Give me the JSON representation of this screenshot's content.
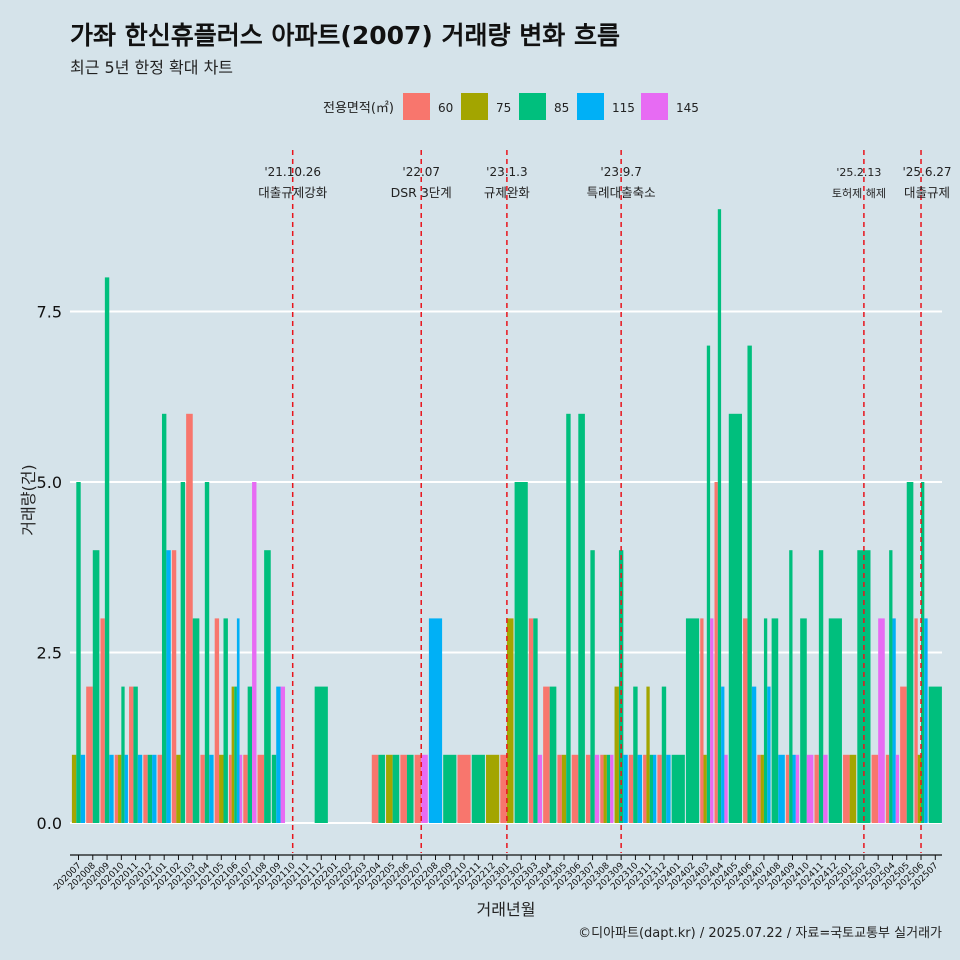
{
  "title": "가좌 한신휴플러스 아파트(2007) 거래량 변화 흐름",
  "subtitle": "최근 5년 한정 확대 차트",
  "credit": "©디아파트(dapt.kr) / 2025.07.22 / 자료=국토교통부 실거래가",
  "colors": {
    "background": "#d5e3ea",
    "grid": "#ffffff",
    "event_line": "#e8141c",
    "60": "#f8766d",
    "75": "#a3a500",
    "85": "#00bf7d",
    "115": "#00b0f6",
    "145": "#e76bf3"
  },
  "chart_data": {
    "type": "bar",
    "title": "가좌 한신휴플러스 아파트(2007) 거래량 변화 흐름",
    "subtitle": "최근 5년 한정 확대 차트",
    "xlabel": "거래년월",
    "ylabel": "거래량(건)",
    "ylim": [
      -0.3,
      9.1
    ],
    "yticks": [
      0.0,
      2.5,
      5.0,
      7.5
    ],
    "ytick_labels": [
      "0.0",
      "2.5",
      "5.0",
      "7.5"
    ],
    "legend_title": "전용면적(㎡)",
    "legend_position": "top",
    "categories": [
      "202007",
      "202008",
      "202009",
      "202010",
      "202011",
      "202012",
      "202101",
      "202102",
      "202103",
      "202104",
      "202105",
      "202106",
      "202107",
      "202108",
      "202109",
      "202110",
      "202111",
      "202112",
      "202201",
      "202202",
      "202203",
      "202204",
      "202205",
      "202206",
      "202207",
      "202208",
      "202209",
      "202210",
      "202211",
      "202212",
      "202301",
      "202302",
      "202303",
      "202304",
      "202305",
      "202306",
      "202307",
      "202308",
      "202309",
      "202310",
      "202311",
      "202312",
      "202401",
      "202402",
      "202403",
      "202404",
      "202405",
      "202406",
      "202407",
      "202408",
      "202409",
      "202410",
      "202411",
      "202412",
      "202501",
      "202502",
      "202503",
      "202504",
      "202505",
      "202506",
      "202507"
    ],
    "series": [
      {
        "name": "60",
        "values": [
          null,
          2,
          3,
          1,
          2,
          1,
          1,
          4,
          6,
          1,
          3,
          1,
          1,
          1,
          null,
          null,
          null,
          null,
          null,
          null,
          null,
          1,
          null,
          1,
          1,
          null,
          null,
          1,
          null,
          null,
          1,
          null,
          3,
          2,
          1,
          1,
          1,
          1,
          null,
          1,
          1,
          1,
          null,
          null,
          3,
          5,
          null,
          3,
          1,
          null,
          1,
          null,
          1,
          null,
          1,
          null,
          1,
          1,
          2,
          3,
          null
        ]
      },
      {
        "name": "75",
        "values": [
          1,
          null,
          null,
          1,
          null,
          null,
          null,
          1,
          null,
          null,
          1,
          2,
          null,
          null,
          null,
          null,
          null,
          null,
          null,
          null,
          null,
          null,
          1,
          null,
          null,
          null,
          null,
          null,
          null,
          1,
          3,
          null,
          null,
          null,
          1,
          null,
          null,
          1,
          2,
          null,
          2,
          null,
          null,
          null,
          1,
          null,
          null,
          null,
          1,
          null,
          null,
          null,
          null,
          null,
          1,
          null,
          null,
          null,
          null,
          1,
          null
        ]
      },
      {
        "name": "85",
        "values": [
          5,
          4,
          8,
          2,
          2,
          1,
          6,
          5,
          3,
          5,
          3,
          2,
          2,
          4,
          1,
          null,
          null,
          2,
          null,
          null,
          null,
          1,
          1,
          1,
          null,
          null,
          1,
          null,
          1,
          null,
          null,
          5,
          3,
          2,
          6,
          6,
          4,
          1,
          4,
          2,
          1,
          2,
          1,
          3,
          7,
          9,
          6,
          7,
          3,
          3,
          4,
          3,
          4,
          3,
          null,
          4,
          null,
          4,
          5,
          5,
          2
        ]
      },
      {
        "name": "115",
        "values": [
          1,
          null,
          1,
          1,
          1,
          1,
          4,
          null,
          null,
          1,
          null,
          3,
          null,
          null,
          2,
          null,
          null,
          null,
          null,
          null,
          null,
          null,
          null,
          null,
          null,
          3,
          null,
          null,
          null,
          null,
          null,
          null,
          null,
          null,
          null,
          null,
          null,
          null,
          1,
          1,
          1,
          1,
          null,
          null,
          null,
          2,
          null,
          2,
          2,
          1,
          1,
          null,
          null,
          null,
          null,
          null,
          null,
          3,
          null,
          3,
          null
        ]
      },
      {
        "name": "145",
        "values": [
          null,
          null,
          null,
          null,
          null,
          null,
          null,
          null,
          null,
          null,
          null,
          1,
          5,
          null,
          2,
          null,
          null,
          null,
          null,
          null,
          null,
          null,
          null,
          null,
          1,
          null,
          null,
          null,
          null,
          null,
          null,
          null,
          1,
          null,
          null,
          null,
          1,
          1,
          null,
          null,
          null,
          null,
          null,
          null,
          3,
          1,
          null,
          null,
          null,
          null,
          1,
          1,
          1,
          null,
          null,
          null,
          3,
          1,
          null,
          null,
          null
        ]
      }
    ],
    "events": [
      {
        "at": "202110",
        "date": "'21.10.26",
        "label": "대출규제강화"
      },
      {
        "at": "202207",
        "date": "'22.07",
        "label": "DSR 3단계"
      },
      {
        "at": "202301",
        "date": "'23.1.3",
        "label": "규제완화"
      },
      {
        "at": "202309",
        "date": "'23.9.7",
        "label": "특례대출축소"
      },
      {
        "at": "202502",
        "date": "'25.2.13",
        "label": "토허제 해제"
      },
      {
        "at": "202506",
        "date": "'25.6.27",
        "label": "대출규제"
      }
    ]
  }
}
